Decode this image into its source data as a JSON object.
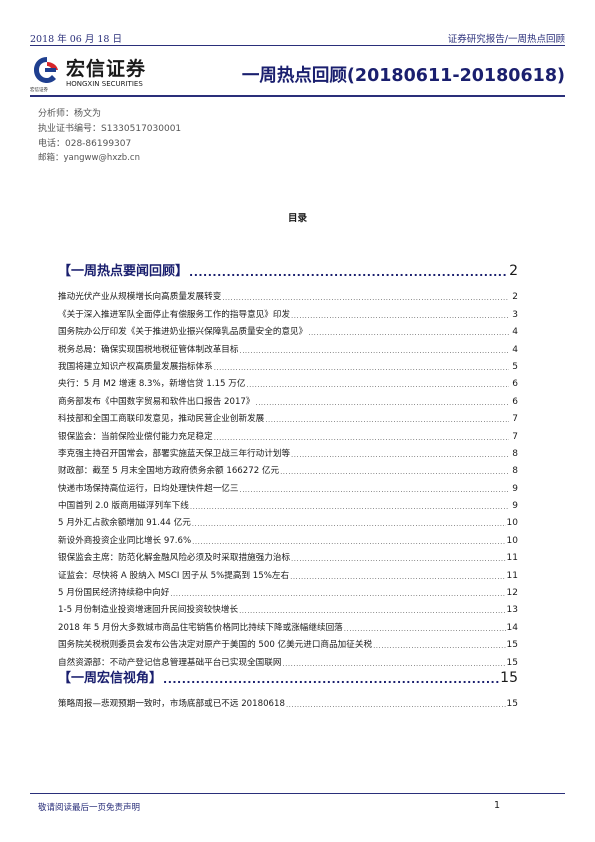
{
  "header": {
    "date": "2018 年 06 月 18 日",
    "category": "证券研究报告/一周热点回顾",
    "report_title": "一周热点回顾(20180611-20180618)"
  },
  "logo": {
    "name_cn": "宏信证券",
    "name_en": "HONGXIN SECURITIES",
    "tiny": "宏信证券",
    "colors": {
      "red": "#d7262b",
      "blue": "#1f3f8f"
    }
  },
  "analyst": {
    "name": "分析师：杨文为",
    "license": "执业证书编号：S1330517030001",
    "phone": "电话：028-86199307",
    "email": "邮箱：yangww@hxzb.cn"
  },
  "toc": {
    "heading": "目录",
    "sections": [
      {
        "title": "【一周热点要闻回顾】",
        "page": "2",
        "items": [
          {
            "title": "推动光伏产业从规模增长向高质量发展转变",
            "page": "2"
          },
          {
            "title": "《关于深入推进军队全面停止有偿服务工作的指导意见》印发",
            "page": "3"
          },
          {
            "title": "国务院办公厅印发《关于推进奶业振兴保障乳品质量安全的意见》",
            "page": "4"
          },
          {
            "title": "税务总局：确保实现国税地税征管体制改革目标",
            "page": "4"
          },
          {
            "title": "我国将建立知识产权高质量发展指标体系",
            "page": "5"
          },
          {
            "title": "央行：5 月 M2 增速 8.3%，新增信贷 1.15 万亿",
            "page": "6"
          },
          {
            "title": "商务部发布《中国数字贸易和软件出口报告 2017》",
            "page": "6"
          },
          {
            "title": "科技部和全国工商联印发意见，推动民营企业创新发展",
            "page": "7"
          },
          {
            "title": "银保监会：当前保险业偿付能力充足稳定",
            "page": "7"
          },
          {
            "title": "李克强主持召开国常会，部署实施蓝天保卫战三年行动计划等",
            "page": "8"
          },
          {
            "title": "财政部：截至 5 月末全国地方政府债务余额 166272 亿元",
            "page": "8"
          },
          {
            "title": "快递市场保持高位运行，日均处理快件超一亿三",
            "page": "9"
          },
          {
            "title": "中国首列 2.0 版商用磁浮列车下线",
            "page": "9"
          },
          {
            "title": "5 月外汇占款余额增加 91.44 亿元",
            "page": "10"
          },
          {
            "title": "新设外商投资企业同比增长 97.6%",
            "page": "10"
          },
          {
            "title": "银保监会主席：防范化解金融风险必须及时采取措施强力治标",
            "page": "11"
          },
          {
            "title": "证监会：尽快将 A 股纳入 MSCI 因子从 5%提高到 15%左右",
            "page": "11"
          },
          {
            "title": "5 月份国民经济持续稳中向好",
            "page": "12"
          },
          {
            "title": "1-5 月份制造业投资增速回升民间投资较快增长",
            "page": "13"
          },
          {
            "title": "2018 年 5 月份大多数城市商品住宅销售价格同比持续下降或涨幅继续回落",
            "page": "14"
          },
          {
            "title": "国务院关税税则委员会发布公告决定对原产于美国的 500 亿美元进口商品加征关税",
            "page": "15"
          },
          {
            "title": "自然资源部：不动产登记信息管理基础平台已实现全国联网",
            "page": "15"
          }
        ]
      },
      {
        "title": "【一周宏信视角】",
        "page": "15",
        "items": [
          {
            "title": "策略周报—悲观预期一致时，市场底部或已不远 20180618",
            "page": "15"
          }
        ]
      }
    ]
  },
  "footer": {
    "disclaimer": "敬请阅读最后一页免责声明",
    "page": "1"
  }
}
